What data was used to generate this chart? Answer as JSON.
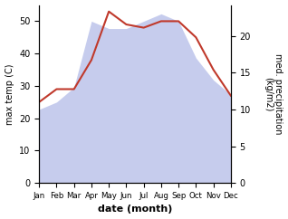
{
  "months": [
    "Jan",
    "Feb",
    "Mar",
    "Apr",
    "May",
    "Jun",
    "Jul",
    "Aug",
    "Sep",
    "Oct",
    "Nov",
    "Dec"
  ],
  "max_temp": [
    25,
    29,
    29,
    38,
    53,
    49,
    48,
    50,
    50,
    45,
    35,
    27
  ],
  "precipitation": [
    10,
    11,
    13,
    22,
    21,
    21,
    22,
    23,
    22,
    17,
    14,
    12
  ],
  "temp_ylim": [
    0,
    55
  ],
  "precip_ylim_max": 22,
  "temp_ylim_max": 50,
  "temp_yticks": [
    0,
    10,
    20,
    30,
    40,
    50
  ],
  "precip_yticks": [
    0,
    5,
    10,
    15,
    20
  ],
  "line_color": "#c0392b",
  "fill_color": "#b3bce8",
  "fill_alpha": 0.75,
  "ylabel_left": "max temp (C)",
  "ylabel_right": "med. precipitation\n(kg/m2)",
  "xlabel": "date (month)",
  "xlabel_fontweight": "bold",
  "bg_color": "#ffffff",
  "tick_fontsize": 7,
  "label_fontsize": 7,
  "xlabel_fontsize": 8
}
